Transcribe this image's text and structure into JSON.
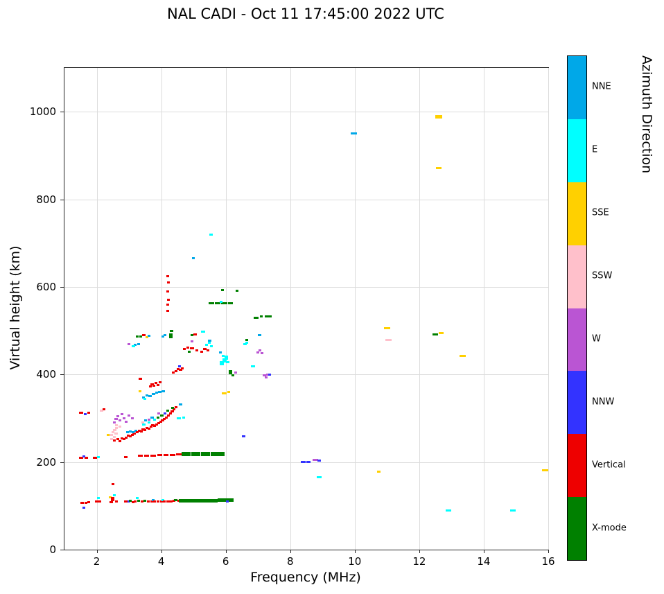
{
  "chart_data": {
    "type": "scatter",
    "title": "NAL CADI - Oct 11 17:45:00 2022 UTC",
    "xlabel": "Frequency (MHz)",
    "ylabel": "Virtual height (km)",
    "xlim": [
      1,
      16
    ],
    "ylim": [
      0,
      1100
    ],
    "xticks": [
      2,
      4,
      6,
      8,
      10,
      12,
      14,
      16
    ],
    "yticks": [
      0,
      200,
      400,
      600,
      800,
      1000
    ],
    "grid": true,
    "grid_color": "#dcdcdc",
    "colorbar": {
      "title": "Azimuth Direction",
      "position": "right",
      "categories": [
        {
          "key": "NNE",
          "label": "NNE",
          "color": "#00a8e8"
        },
        {
          "key": "E",
          "label": "E",
          "color": "#00ffff"
        },
        {
          "key": "SSE",
          "label": "SSE",
          "color": "#ffd000"
        },
        {
          "key": "SSW",
          "label": "SSW",
          "color": "#ffc0cb"
        },
        {
          "key": "W",
          "label": "W",
          "color": "#ba55d3"
        },
        {
          "key": "NNW",
          "label": "NNW",
          "color": "#3333ff"
        },
        {
          "key": "V",
          "label": "Vertical",
          "color": "#ee0000"
        },
        {
          "key": "X",
          "label": "X-mode",
          "color": "#008000"
        }
      ]
    },
    "point_format": [
      "frequency_mhz",
      "virtual_height_km",
      "azimuth_key",
      "freq_span_mhz_optional",
      "thickness_px_optional"
    ],
    "points": [
      [
        1.55,
        107,
        "V"
      ],
      [
        1.66,
        107,
        "V"
      ],
      [
        1.76,
        108,
        "V"
      ],
      [
        1.6,
        95,
        "NNW"
      ],
      [
        2.0,
        110,
        "V"
      ],
      [
        2.1,
        110,
        "V"
      ],
      [
        2.05,
        118,
        "E"
      ],
      [
        2.42,
        120,
        "SSE"
      ],
      [
        2.45,
        108,
        "V"
      ],
      [
        2.5,
        115,
        "V",
        0.1,
        6
      ],
      [
        2.55,
        124,
        "E"
      ],
      [
        2.5,
        150,
        "V"
      ],
      [
        2.62,
        110,
        "V"
      ],
      [
        2.9,
        110,
        "V"
      ],
      [
        3.0,
        110,
        "NNW"
      ],
      [
        3.05,
        112,
        "X"
      ],
      [
        3.12,
        108,
        "V"
      ],
      [
        3.2,
        110,
        "V"
      ],
      [
        3.25,
        118,
        "E"
      ],
      [
        3.3,
        112,
        "X"
      ],
      [
        3.4,
        110,
        "V"
      ],
      [
        3.5,
        111,
        "X"
      ],
      [
        3.6,
        110,
        "V"
      ],
      [
        3.7,
        110,
        "V"
      ],
      [
        3.75,
        113,
        "NNE"
      ],
      [
        3.8,
        110,
        "V"
      ],
      [
        3.9,
        110,
        "V"
      ],
      [
        4.0,
        110,
        "V"
      ],
      [
        4.05,
        113,
        "E"
      ],
      [
        4.1,
        110,
        "V"
      ],
      [
        4.2,
        110,
        "V"
      ],
      [
        4.3,
        110,
        "V"
      ],
      [
        4.4,
        111,
        "V"
      ],
      [
        4.45,
        113,
        "X"
      ],
      [
        4.55,
        111,
        "V"
      ],
      [
        4.7,
        112,
        "X",
        0.3,
        5
      ],
      [
        5.0,
        112,
        "X",
        0.3,
        5
      ],
      [
        5.3,
        112,
        "X",
        0.3,
        5
      ],
      [
        5.6,
        112,
        "X",
        0.3,
        5
      ],
      [
        5.9,
        113,
        "X",
        0.3,
        5
      ],
      [
        6.15,
        113,
        "X",
        0.2,
        5
      ],
      [
        6.05,
        110,
        "NNW"
      ],
      [
        1.52,
        210,
        "V",
        0.12
      ],
      [
        1.68,
        210,
        "V",
        0.1
      ],
      [
        1.6,
        213,
        "NNW"
      ],
      [
        1.95,
        210,
        "V",
        0.12
      ],
      [
        2.05,
        211,
        "E"
      ],
      [
        2.9,
        212,
        "V"
      ],
      [
        3.35,
        215,
        "V",
        0.16
      ],
      [
        3.55,
        215,
        "V",
        0.16
      ],
      [
        3.75,
        215,
        "V",
        0.16
      ],
      [
        3.95,
        216,
        "V",
        0.16
      ],
      [
        4.15,
        216,
        "V",
        0.16
      ],
      [
        4.35,
        216,
        "V",
        0.16
      ],
      [
        4.55,
        217,
        "V",
        0.16
      ],
      [
        4.78,
        219,
        "X",
        0.28,
        6
      ],
      [
        5.08,
        219,
        "X",
        0.28,
        6
      ],
      [
        5.38,
        219,
        "X",
        0.28,
        6
      ],
      [
        5.68,
        219,
        "X",
        0.28,
        6
      ],
      [
        5.88,
        218,
        "X",
        0.18,
        6
      ],
      [
        1.52,
        312,
        "V",
        0.12
      ],
      [
        1.65,
        310,
        "NNW"
      ],
      [
        1.75,
        312,
        "V"
      ],
      [
        2.15,
        318,
        "SSW"
      ],
      [
        2.22,
        320,
        "V"
      ],
      [
        2.35,
        262,
        "SSE"
      ],
      [
        2.45,
        262,
        "SSW"
      ],
      [
        2.5,
        268,
        "SSW"
      ],
      [
        2.55,
        257,
        "SSW"
      ],
      [
        2.6,
        265,
        "SSW"
      ],
      [
        2.47,
        253,
        "SSW"
      ],
      [
        2.56,
        273,
        "SSW"
      ],
      [
        2.62,
        278,
        "SSW"
      ],
      [
        2.62,
        284,
        "SSW"
      ],
      [
        2.72,
        281,
        "SSW"
      ],
      [
        2.55,
        250,
        "V"
      ],
      [
        2.65,
        252,
        "V"
      ],
      [
        2.72,
        248,
        "V"
      ],
      [
        2.78,
        254,
        "V"
      ],
      [
        2.85,
        252,
        "V"
      ],
      [
        2.92,
        256,
        "V"
      ],
      [
        2.98,
        260,
        "V"
      ],
      [
        3.05,
        258,
        "V"
      ],
      [
        3.1,
        262,
        "V"
      ],
      [
        3.16,
        265,
        "V"
      ],
      [
        2.95,
        268,
        "NNE"
      ],
      [
        3.05,
        270,
        "NNE"
      ],
      [
        3.12,
        268,
        "NNE"
      ],
      [
        3.22,
        272,
        "NNE"
      ],
      [
        2.55,
        290,
        "W"
      ],
      [
        2.6,
        298,
        "W"
      ],
      [
        2.66,
        305,
        "W"
      ],
      [
        2.72,
        295,
        "W"
      ],
      [
        2.78,
        310,
        "W"
      ],
      [
        2.85,
        300,
        "W"
      ],
      [
        2.92,
        292,
        "W"
      ],
      [
        3.0,
        306,
        "W"
      ],
      [
        3.1,
        300,
        "W"
      ],
      [
        3.25,
        268,
        "V"
      ],
      [
        3.32,
        272,
        "V"
      ],
      [
        3.38,
        270,
        "V"
      ],
      [
        3.44,
        275,
        "V"
      ],
      [
        3.5,
        273,
        "V"
      ],
      [
        3.55,
        278,
        "V"
      ],
      [
        3.62,
        276,
        "V"
      ],
      [
        3.68,
        281,
        "V"
      ],
      [
        3.74,
        284,
        "V"
      ],
      [
        3.8,
        282,
        "V"
      ],
      [
        3.86,
        286,
        "V"
      ],
      [
        3.92,
        289,
        "V"
      ],
      [
        3.98,
        292,
        "V"
      ],
      [
        4.04,
        295,
        "V"
      ],
      [
        4.1,
        299,
        "V"
      ],
      [
        4.16,
        302,
        "V"
      ],
      [
        4.22,
        306,
        "V"
      ],
      [
        4.28,
        311,
        "V"
      ],
      [
        4.34,
        315,
        "V"
      ],
      [
        4.4,
        320,
        "V"
      ],
      [
        4.46,
        326,
        "V"
      ],
      [
        3.46,
        286,
        "E"
      ],
      [
        3.62,
        290,
        "E"
      ],
      [
        3.8,
        296,
        "E"
      ],
      [
        3.9,
        301,
        "X"
      ],
      [
        4.02,
        306,
        "X"
      ],
      [
        4.2,
        318,
        "X"
      ],
      [
        4.36,
        324,
        "X"
      ],
      [
        3.52,
        295,
        "NNE"
      ],
      [
        3.72,
        301,
        "NNE"
      ],
      [
        3.62,
        296,
        "W"
      ],
      [
        3.92,
        311,
        "W"
      ],
      [
        4.12,
        311,
        "NNW"
      ],
      [
        3.42,
        291,
        "SSW"
      ],
      [
        3.45,
        348,
        "NNE",
        0.1
      ],
      [
        3.56,
        352,
        "NNE",
        0.1
      ],
      [
        3.66,
        350,
        "NNE",
        0.1
      ],
      [
        3.76,
        355,
        "NNE",
        0.1
      ],
      [
        3.86,
        358,
        "NNE",
        0.1
      ],
      [
        3.96,
        360,
        "NNE",
        0.1
      ],
      [
        4.06,
        361,
        "NNE",
        0.1
      ],
      [
        3.5,
        344,
        "E"
      ],
      [
        3.35,
        362,
        "SSE"
      ],
      [
        3.66,
        372,
        "V"
      ],
      [
        3.72,
        378,
        "V"
      ],
      [
        3.78,
        375,
        "V"
      ],
      [
        3.84,
        380,
        "V"
      ],
      [
        3.9,
        376,
        "V"
      ],
      [
        3.96,
        382,
        "V"
      ],
      [
        3.35,
        390,
        "V",
        0.12
      ],
      [
        3.0,
        470,
        "W",
        0.1
      ],
      [
        3.2,
        468,
        "NNE"
      ],
      [
        3.3,
        470,
        "NNE"
      ],
      [
        3.14,
        465,
        "E"
      ],
      [
        3.26,
        487,
        "X"
      ],
      [
        3.36,
        487,
        "X"
      ],
      [
        3.46,
        490,
        "V"
      ],
      [
        3.56,
        485,
        "SSE"
      ],
      [
        3.62,
        488,
        "NNE"
      ],
      [
        4.05,
        487,
        "NNE"
      ],
      [
        4.12,
        490,
        "NNE"
      ],
      [
        4.3,
        488,
        "X",
        0.12,
        7
      ],
      [
        4.32,
        500,
        "X"
      ],
      [
        4.2,
        545,
        "V"
      ],
      [
        4.2,
        560,
        "V"
      ],
      [
        4.23,
        570,
        "V"
      ],
      [
        4.2,
        590,
        "V"
      ],
      [
        4.23,
        610,
        "V"
      ],
      [
        4.2,
        625,
        "V"
      ],
      [
        4.38,
        405,
        "V"
      ],
      [
        4.46,
        408,
        "V"
      ],
      [
        4.52,
        412,
        "V"
      ],
      [
        4.6,
        410,
        "V"
      ],
      [
        4.66,
        414,
        "V"
      ],
      [
        4.56,
        418,
        "NNW"
      ],
      [
        4.55,
        300,
        "E",
        0.12
      ],
      [
        4.7,
        302,
        "E"
      ],
      [
        4.6,
        332,
        "NNE"
      ],
      [
        4.72,
        458,
        "V"
      ],
      [
        4.82,
        462,
        "V"
      ],
      [
        4.95,
        460,
        "V",
        0.12
      ],
      [
        5.1,
        455,
        "V"
      ],
      [
        4.86,
        452,
        "X"
      ],
      [
        4.95,
        490,
        "X"
      ],
      [
        5.05,
        492,
        "V"
      ],
      [
        4.95,
        475,
        "W"
      ],
      [
        5.0,
        665,
        "NNE"
      ],
      [
        5.25,
        452,
        "V"
      ],
      [
        5.35,
        458,
        "V"
      ],
      [
        5.45,
        455,
        "V"
      ],
      [
        5.4,
        468,
        "E"
      ],
      [
        5.5,
        472,
        "E"
      ],
      [
        5.56,
        465,
        "E"
      ],
      [
        5.5,
        477,
        "NNE",
        0.12
      ],
      [
        5.3,
        497,
        "E",
        0.12
      ],
      [
        5.55,
        562,
        "X",
        0.18
      ],
      [
        5.75,
        563,
        "X",
        0.18
      ],
      [
        5.95,
        562,
        "X",
        0.18
      ],
      [
        6.15,
        562,
        "X",
        0.14
      ],
      [
        5.85,
        566,
        "E"
      ],
      [
        5.55,
        720,
        "E",
        0.1
      ],
      [
        5.9,
        592,
        "X"
      ],
      [
        5.88,
        425,
        "E",
        0.12,
        6
      ],
      [
        5.96,
        432,
        "E",
        0.12,
        6
      ],
      [
        6.02,
        438,
        "E",
        0.1,
        6
      ],
      [
        6.06,
        428,
        "E"
      ],
      [
        5.92,
        443,
        "E"
      ],
      [
        5.84,
        450,
        "NNE"
      ],
      [
        5.95,
        357,
        "SSE",
        0.16
      ],
      [
        6.1,
        360,
        "SSE"
      ],
      [
        6.15,
        405,
        "X",
        0.12,
        6
      ],
      [
        6.22,
        398,
        "X"
      ],
      [
        6.3,
        405,
        "W"
      ],
      [
        6.35,
        591,
        "X"
      ],
      [
        6.55,
        258,
        "NNW",
        0.1
      ],
      [
        6.6,
        470,
        "E"
      ],
      [
        6.66,
        473,
        "E"
      ],
      [
        6.65,
        478,
        "X"
      ],
      [
        6.85,
        418,
        "E",
        0.12
      ],
      [
        7.0,
        450,
        "W"
      ],
      [
        7.06,
        455,
        "W"
      ],
      [
        7.12,
        448,
        "W"
      ],
      [
        7.05,
        490,
        "NNE"
      ],
      [
        7.2,
        398,
        "W"
      ],
      [
        7.3,
        400,
        "W"
      ],
      [
        7.26,
        394,
        "W"
      ],
      [
        7.36,
        400,
        "NNW"
      ],
      [
        6.95,
        530,
        "X",
        0.15
      ],
      [
        7.1,
        532,
        "X",
        0.1
      ],
      [
        7.27,
        533,
        "X",
        0.12
      ],
      [
        7.37,
        532,
        "X",
        0.1
      ],
      [
        8.4,
        200,
        "NNW",
        0.16
      ],
      [
        8.56,
        200,
        "NNW",
        0.12
      ],
      [
        8.78,
        205,
        "W",
        0.16
      ],
      [
        8.9,
        204,
        "NNW",
        0.1
      ],
      [
        8.9,
        165,
        "E",
        0.16
      ],
      [
        9.97,
        950,
        "NNE",
        0.18
      ],
      [
        10.75,
        178,
        "SSE",
        0.12
      ],
      [
        11.0,
        505,
        "SSE",
        0.2
      ],
      [
        11.05,
        478,
        "SSW",
        0.2
      ],
      [
        12.6,
        988,
        "SSE",
        0.22,
        5
      ],
      [
        12.6,
        872,
        "SSE",
        0.18
      ],
      [
        12.5,
        492,
        "X",
        0.18
      ],
      [
        12.68,
        494,
        "SSE",
        0.15
      ],
      [
        13.35,
        443,
        "SSE",
        0.2
      ],
      [
        12.9,
        90,
        "E",
        0.18
      ],
      [
        14.9,
        90,
        "E",
        0.18
      ],
      [
        15.9,
        182,
        "SSE",
        0.18
      ]
    ]
  }
}
